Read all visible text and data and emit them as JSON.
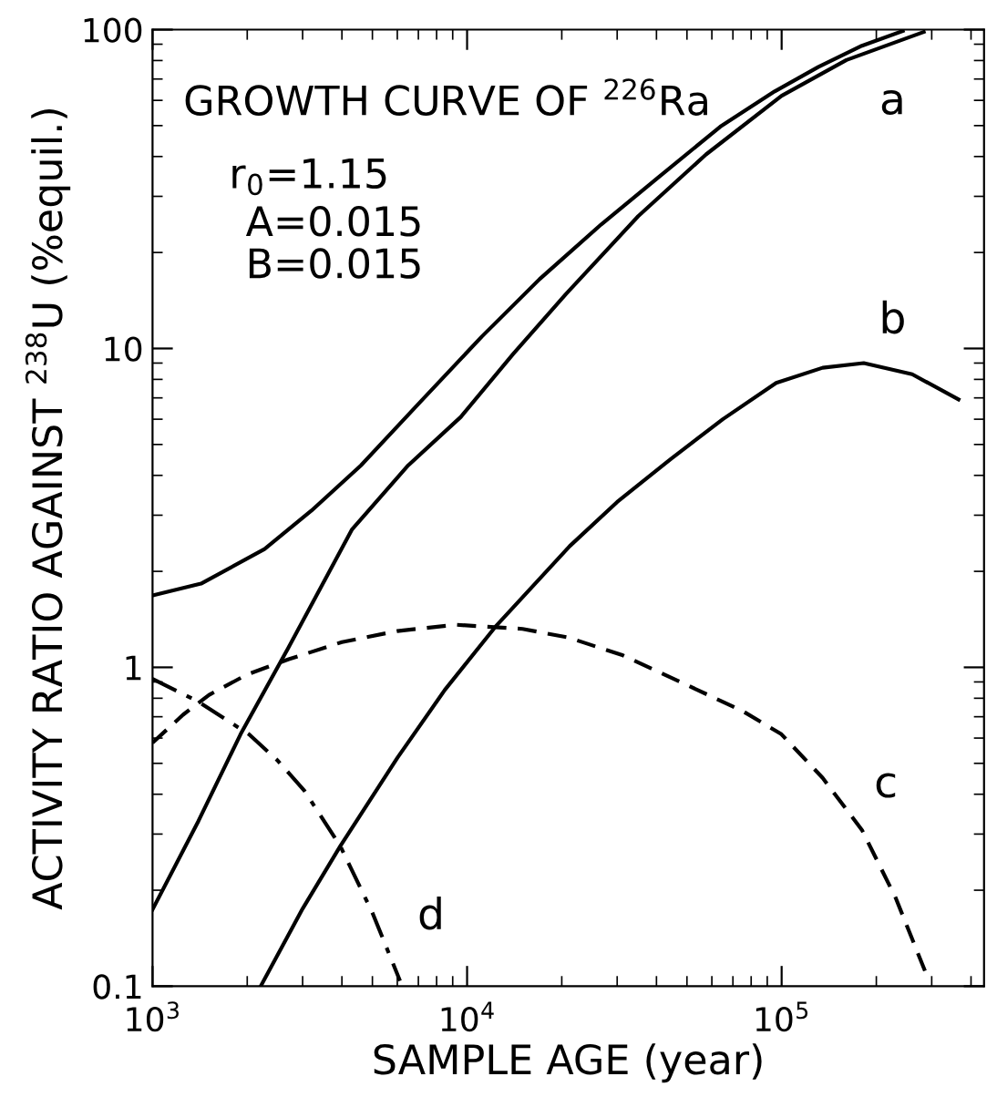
{
  "chart_data": {
    "type": "line",
    "xlabel": "SAMPLE AGE (year)",
    "ylabel": "ACTIVITY RATIO AGAINST $^{238}$U (%equil.)",
    "log": "xy",
    "xlim": [
      1000,
      440000
    ],
    "ylim": [
      0.1,
      100
    ],
    "xticks": [
      {
        "value": 1000,
        "label": "10$^{3}$"
      },
      {
        "value": 10000,
        "label": "10$^{4}$"
      },
      {
        "value": 100000,
        "label": "10$^{5}$"
      }
    ],
    "yticks": [
      0.1,
      1,
      10,
      100
    ],
    "grid": false,
    "legend": false,
    "series": [
      {
        "color": "#000000",
        "line_style": "solid",
        "x": [
          1000,
          1426,
          2270,
          3200,
          4600,
          7000,
          11140,
          17000,
          26700,
          40000,
          63800,
          95000,
          131000,
          180000,
          242700
        ],
        "values": [
          1.68,
          1.83,
          2.35,
          3.1,
          4.3,
          6.7,
          10.9,
          16.5,
          24.5,
          34,
          49.6,
          64,
          76.4,
          89,
          99
        ]
      },
      {
        "color": "#000000",
        "line_style": "solid",
        "x": [
          1000,
          1400,
          1905,
          2700,
          4300,
          6500,
          9550,
          14000,
          20600,
          35000,
          57500,
          100000,
          160700,
          283000
        ],
        "values": [
          0.174,
          0.33,
          0.617,
          1.15,
          2.7,
          4.3,
          6.1,
          9.6,
          14.8,
          26,
          40.6,
          62,
          80.3,
          98.3
        ]
      },
      {
        "color": "#000000",
        "line_style": "solid",
        "x": [
          2207,
          3000,
          3953,
          6000,
          8500,
          12300,
          21200,
          30000,
          44400,
          65000,
          96100,
          135000,
          182400,
          260000,
          365000
        ],
        "values": [
          0.1,
          0.175,
          0.275,
          0.52,
          0.85,
          1.34,
          2.4,
          3.3,
          4.5,
          6.0,
          7.8,
          8.7,
          9.0,
          8.3,
          6.92
        ]
      },
      {
        "color": "#000000",
        "line_style": "dashed",
        "x": [
          1000,
          1250,
          1514,
          2000,
          2710,
          4000,
          6000,
          9200,
          15000,
          21000,
          31300,
          50000,
          75000,
          99800,
          135000,
          180000,
          230000,
          294000
        ],
        "values": [
          0.58,
          0.71,
          0.82,
          0.95,
          1.06,
          1.2,
          1.3,
          1.36,
          1.32,
          1.24,
          1.09,
          0.88,
          0.73,
          0.617,
          0.45,
          0.309,
          0.19,
          0.104
        ]
      },
      {
        "color": "#000000",
        "line_style": "dashdot",
        "x": [
          1000,
          1400,
          2024,
          2500,
          3040,
          3953,
          5000,
          6120
        ],
        "values": [
          0.92,
          0.78,
          0.617,
          0.51,
          0.41,
          0.275,
          0.17,
          0.104
        ]
      }
    ],
    "annotations": [
      "GROWTH CURVE OF $^{226}$Ra",
      "r$_{0}$=1.15",
      "A=0.015",
      "B=0.015",
      "a",
      "b",
      "c",
      "d"
    ]
  }
}
